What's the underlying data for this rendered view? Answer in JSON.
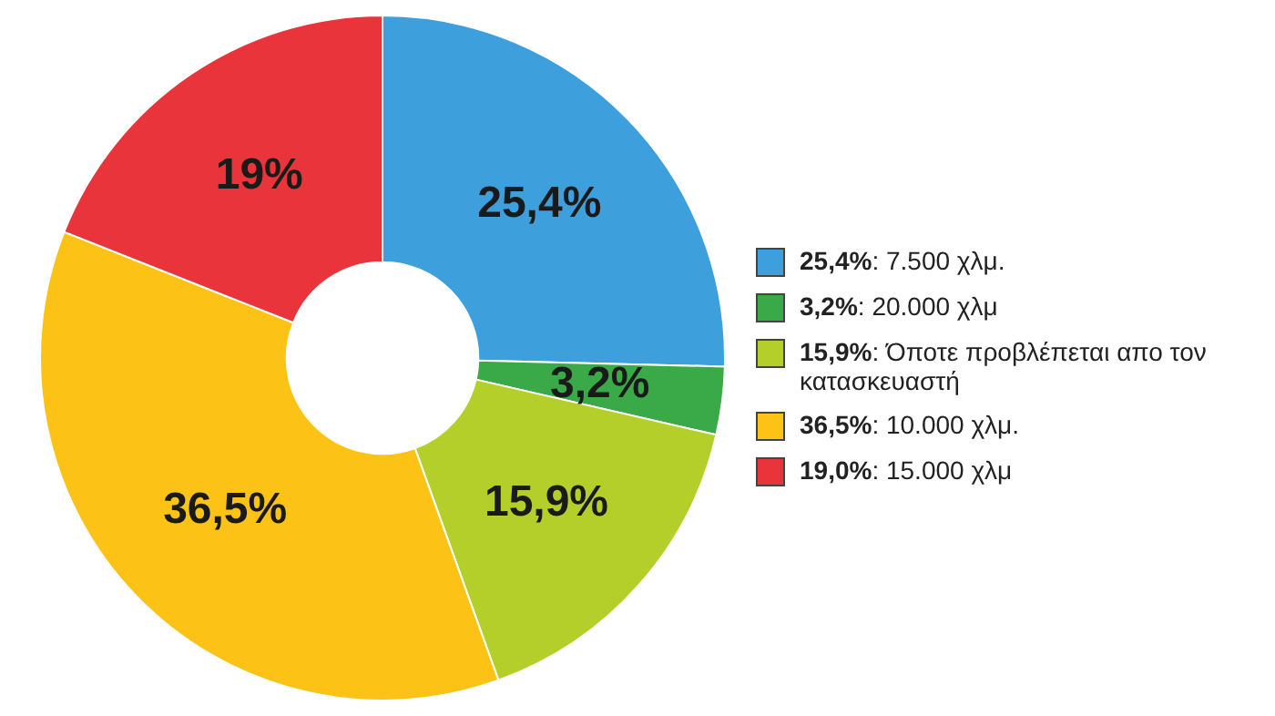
{
  "chart_data": {
    "type": "donut",
    "categories": [
      "25,4%: 7.500 χλμ.",
      "3,2%: 20.000 χλμ",
      "15,9%: Όποτε προβλέπεται απο τον κατασκευαστή",
      "36,5%: 10.000 χλμ.",
      "19,0%: 15.000 χλμ"
    ],
    "values": [
      25.4,
      3.2,
      15.9,
      36.5,
      19
    ],
    "colors": [
      "#3da0dc",
      "#3aaa48",
      "#b5cf2a",
      "#fcc316",
      "#e8343a"
    ],
    "value_labels": [
      "25,4%",
      "3,2%",
      "15,9%",
      "36,5%",
      "19%"
    ],
    "legend": "right"
  }
}
